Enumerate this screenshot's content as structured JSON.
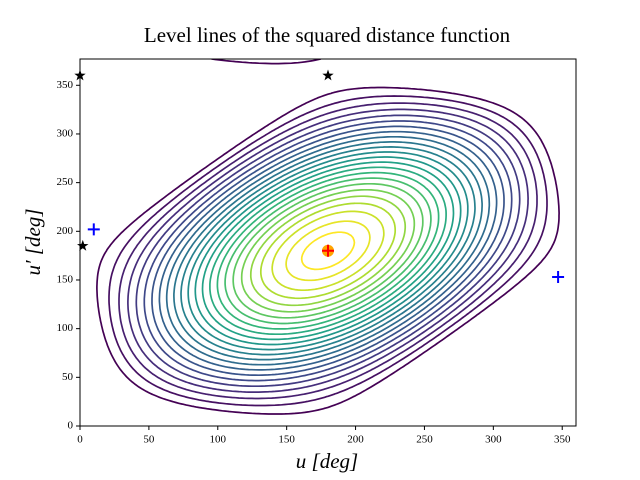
{
  "chart_data": {
    "type": "contour",
    "title": "Level lines of the squared distance function",
    "xlabel": "u [deg]",
    "ylabel": "u′ [deg]",
    "xlim": [
      0,
      360
    ],
    "ylim": [
      0,
      377
    ],
    "xticks": [
      0,
      50,
      100,
      150,
      200,
      250,
      300,
      350
    ],
    "yticks": [
      0,
      50,
      100,
      150,
      200,
      250,
      300,
      350
    ],
    "colormap": "viridis",
    "levels": [
      -0.7,
      -0.55,
      -0.4,
      -0.25,
      -0.1,
      0.05,
      0.2,
      0.35,
      0.5,
      0.65,
      0.8,
      0.95,
      1.1,
      1.25,
      1.4,
      1.55,
      1.7,
      1.85,
      2.0,
      2.15,
      2.3,
      2.45,
      2.6,
      2.72
    ],
    "markers": [
      {
        "marker": "star",
        "color": "#000000",
        "x": [
          0,
          180,
          2
        ],
        "y": [
          360,
          360,
          185
        ]
      },
      {
        "marker": "plus",
        "color": "#0000ff",
        "x": [
          10,
          347
        ],
        "y": [
          202,
          153
        ]
      },
      {
        "marker": "circle",
        "color": "#ffa500",
        "x": [
          180
        ],
        "y": [
          180
        ]
      },
      {
        "marker": "plus",
        "color": "#ff0000",
        "x": [
          180
        ],
        "y": [
          180
        ]
      }
    ]
  }
}
